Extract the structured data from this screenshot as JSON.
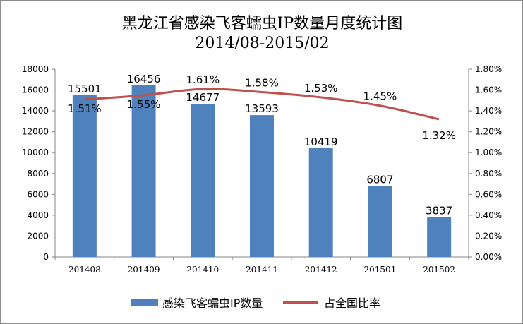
{
  "chart_data": {
    "type": "bar",
    "title": "黑龙江省感染飞客蠕虫IP数量月度统计图",
    "subtitle": "2014/08-2015/02",
    "categories": [
      "201408",
      "201409",
      "201410",
      "201411",
      "201412",
      "201501",
      "201502"
    ],
    "series": [
      {
        "name": "感染飞客蠕虫IP数量",
        "type": "bar",
        "axis": "left",
        "values": [
          15501,
          16456,
          14677,
          13593,
          10419,
          6807,
          3837
        ],
        "labels": [
          "15501",
          "16456",
          "14677",
          "13593",
          "10419",
          "6807",
          "3837"
        ],
        "color": "#4f81bd"
      },
      {
        "name": "占全国比率",
        "type": "line",
        "axis": "right",
        "values": [
          1.51,
          1.55,
          1.61,
          1.58,
          1.53,
          1.45,
          1.32
        ],
        "labels": [
          "1.51%",
          "1.55%",
          "1.61%",
          "1.58%",
          "1.53%",
          "1.45%",
          "1.32%"
        ],
        "color": "#c0504d"
      }
    ],
    "y_left": {
      "range": [
        0,
        18000
      ],
      "ticks": [
        "0",
        "2000",
        "4000",
        "6000",
        "8000",
        "10000",
        "12000",
        "14000",
        "16000",
        "18000"
      ]
    },
    "y_right": {
      "range": [
        0,
        1.8
      ],
      "ticks": [
        "0.00%",
        "0.20%",
        "0.40%",
        "0.60%",
        "0.80%",
        "1.00%",
        "1.20%",
        "1.40%",
        "1.60%",
        "1.80%"
      ]
    },
    "grid": false,
    "legend_position": "bottom"
  }
}
